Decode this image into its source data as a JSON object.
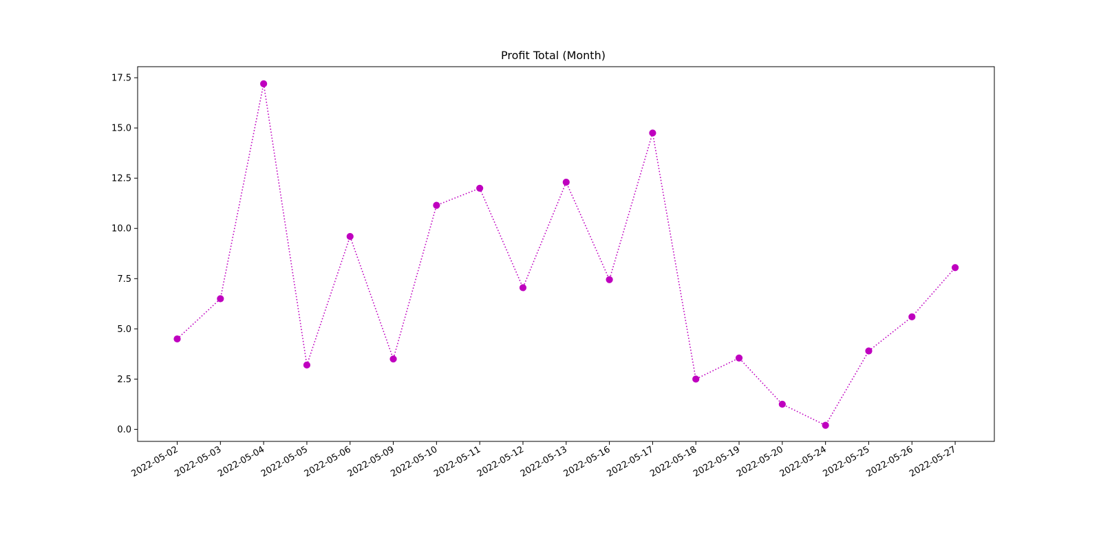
{
  "chart_data": {
    "type": "line",
    "title": "Profit Total (Month)",
    "xlabel": "",
    "ylabel": "",
    "categories": [
      "2022-05-02",
      "2022-05-03",
      "2022-05-04",
      "2022-05-05",
      "2022-05-06",
      "2022-05-09",
      "2022-05-10",
      "2022-05-11",
      "2022-05-12",
      "2022-05-13",
      "2022-05-16",
      "2022-05-17",
      "2022-05-18",
      "2022-05-19",
      "2022-05-20",
      "2022-05-24",
      "2022-05-25",
      "2022-05-26",
      "2022-05-27"
    ],
    "series": [
      {
        "values": [
          4.5,
          6.5,
          17.2,
          3.2,
          9.6,
          3.5,
          11.15,
          12.0,
          7.05,
          12.3,
          7.45,
          14.75,
          2.5,
          3.55,
          1.25,
          0.2,
          3.9,
          5.6,
          8.05
        ],
        "color": "#bf00bf",
        "line_style": "dotted",
        "marker": "circle"
      }
    ],
    "ylim": [
      -0.6,
      18.05
    ],
    "yticks": [
      0.0,
      2.5,
      5.0,
      7.5,
      10.0,
      12.5,
      15.0,
      17.5
    ],
    "ytick_labels": [
      "0.0",
      "2.5",
      "5.0",
      "7.5",
      "10.0",
      "12.5",
      "15.0",
      "17.5"
    ],
    "grid": false,
    "legend": "none"
  }
}
